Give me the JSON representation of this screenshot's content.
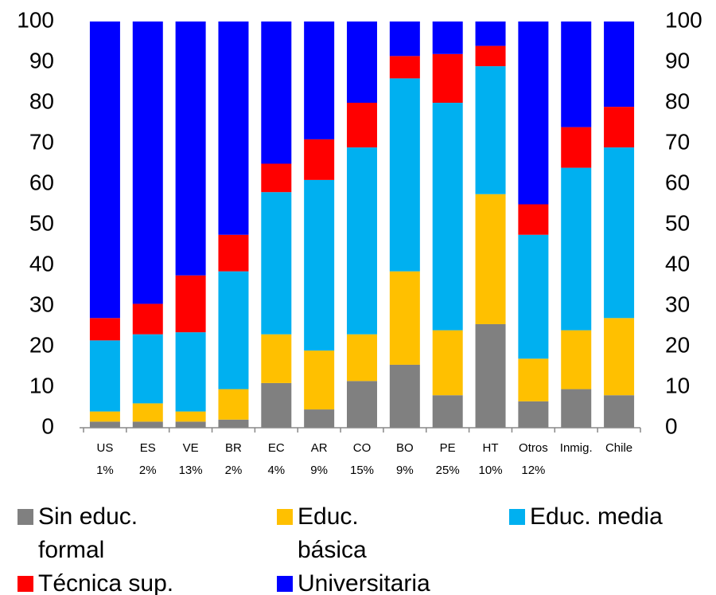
{
  "chart_data": {
    "type": "stacked_bar",
    "categories": [
      [
        "US",
        "1%"
      ],
      [
        "ES",
        "2%"
      ],
      [
        "VE",
        "13%"
      ],
      [
        "BR",
        "2%"
      ],
      [
        "EC",
        "4%"
      ],
      [
        "AR",
        "9%"
      ],
      [
        "CO",
        "15%"
      ],
      [
        "BO",
        "9%"
      ],
      [
        "PE",
        "25%"
      ],
      [
        "HT",
        "10%"
      ],
      [
        "Otros",
        "12%"
      ],
      [
        "Inmig."
      ],
      [
        "Chile"
      ]
    ],
    "series": [
      {
        "name": "Sin educ. formal",
        "color": "#808080",
        "values": [
          1.5,
          1.5,
          1.5,
          2,
          11,
          4.5,
          11.5,
          15.5,
          8,
          25.5,
          6.5,
          9.5,
          8
        ]
      },
      {
        "name": "Educ. básica",
        "color": "#ffc000",
        "values": [
          2.5,
          4.5,
          2.5,
          7.5,
          12,
          14.5,
          11.5,
          23,
          16,
          32,
          10.5,
          14.5,
          19
        ]
      },
      {
        "name": "Educ. media",
        "color": "#00b0f0",
        "values": [
          17.5,
          17,
          19.5,
          29,
          35,
          42,
          46,
          47.5,
          56,
          31.5,
          30.5,
          40,
          42
        ]
      },
      {
        "name": "Técnica sup.",
        "color": "#ff0000",
        "values": [
          5.5,
          7.5,
          14,
          9,
          7,
          10,
          11,
          5.5,
          12,
          5,
          7.5,
          10,
          10
        ]
      },
      {
        "name": "Universitaria",
        "color": "#0000ff",
        "values": [
          73,
          69.5,
          62.5,
          52.5,
          35,
          29,
          20,
          8.5,
          8,
          6,
          45,
          26,
          21
        ]
      }
    ],
    "ylim": [
      0,
      100
    ],
    "yticks": [
      0,
      10,
      20,
      30,
      40,
      50,
      60,
      70,
      80,
      90,
      100
    ],
    "y2lim": [
      0,
      100
    ],
    "y2ticks": [
      0,
      10,
      20,
      30,
      40,
      50,
      60,
      70,
      80,
      90,
      100
    ]
  }
}
